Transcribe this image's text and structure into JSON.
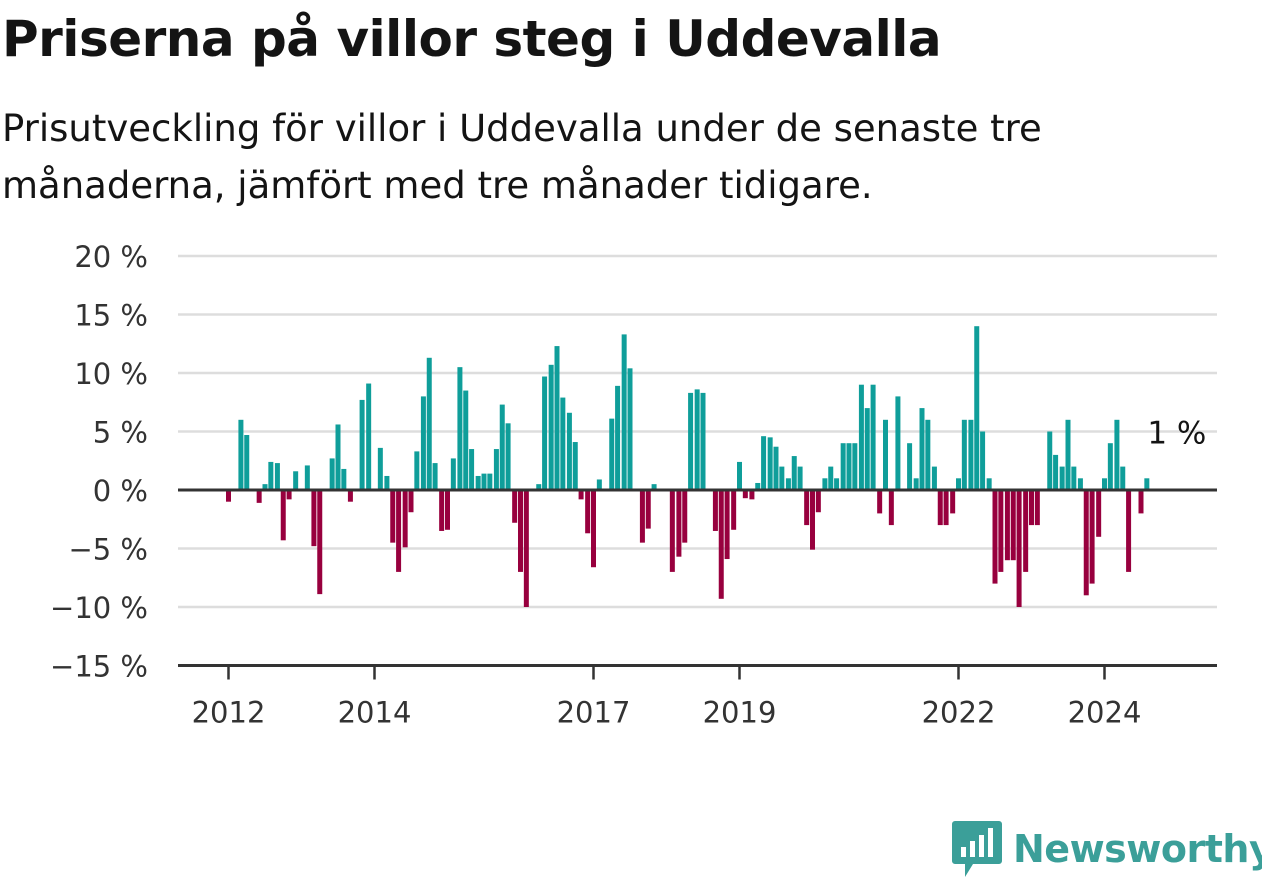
{
  "title": "Priserna på villor steg i Uddevalla",
  "subtitle": "Prisutveckling för villor i Uddevalla under de senaste tre månaderna, jämfört med tre månader tidigare.",
  "brand": {
    "name": "Newsworthy",
    "color": "#3b9f99",
    "icon": "newsworthy-logo-icon"
  },
  "colors": {
    "positive": "#0f9e9a",
    "negative": "#98003e",
    "grid": "#dddddd",
    "axis": "#333333"
  },
  "chart_data": {
    "type": "bar",
    "ylim": [
      -15,
      20
    ],
    "yticks": [
      20,
      15,
      10,
      5,
      0,
      -5,
      -10,
      -15
    ],
    "ytick_labels": [
      "20 %",
      "15 %",
      "10 %",
      "5 %",
      "0 %",
      "−5 %",
      "−10 %",
      "−15 %"
    ],
    "xticks": [
      {
        "year": 2012,
        "label": "2012"
      },
      {
        "year": 2014,
        "label": "2014"
      },
      {
        "year": 2017,
        "label": "2017"
      },
      {
        "year": 2019,
        "label": "2019"
      },
      {
        "year": 2022,
        "label": "2022"
      },
      {
        "year": 2024,
        "label": "2024"
      }
    ],
    "annotation": "1 %",
    "grid": true,
    "bars": [
      {
        "t": 2012.0,
        "v": -1
      },
      {
        "t": 2012.17,
        "v": 6
      },
      {
        "t": 2012.25,
        "v": 4.7
      },
      {
        "t": 2012.42,
        "v": -1.1
      },
      {
        "t": 2012.5,
        "v": 0.5
      },
      {
        "t": 2012.58,
        "v": 2.4
      },
      {
        "t": 2012.67,
        "v": 2.3
      },
      {
        "t": 2012.75,
        "v": -4.3
      },
      {
        "t": 2012.83,
        "v": -0.8
      },
      {
        "t": 2012.92,
        "v": 1.6
      },
      {
        "t": 2013.08,
        "v": 2.1
      },
      {
        "t": 2013.17,
        "v": -4.8
      },
      {
        "t": 2013.25,
        "v": -8.9
      },
      {
        "t": 2013.42,
        "v": 2.7
      },
      {
        "t": 2013.5,
        "v": 5.6
      },
      {
        "t": 2013.58,
        "v": 1.8
      },
      {
        "t": 2013.67,
        "v": -1
      },
      {
        "t": 2013.83,
        "v": 7.7
      },
      {
        "t": 2013.92,
        "v": 9.1
      },
      {
        "t": 2014.08,
        "v": 3.6
      },
      {
        "t": 2014.17,
        "v": 1.2
      },
      {
        "t": 2014.25,
        "v": -4.5
      },
      {
        "t": 2014.33,
        "v": -7
      },
      {
        "t": 2014.42,
        "v": -4.9
      },
      {
        "t": 2014.5,
        "v": -1.9
      },
      {
        "t": 2014.58,
        "v": 3.3
      },
      {
        "t": 2014.67,
        "v": 8
      },
      {
        "t": 2014.75,
        "v": 11.3
      },
      {
        "t": 2014.83,
        "v": 2.3
      },
      {
        "t": 2014.92,
        "v": -3.5
      },
      {
        "t": 2015.0,
        "v": -3.4
      },
      {
        "t": 2015.08,
        "v": 2.7
      },
      {
        "t": 2015.17,
        "v": 10.5
      },
      {
        "t": 2015.25,
        "v": 8.5
      },
      {
        "t": 2015.33,
        "v": 3.5
      },
      {
        "t": 2015.42,
        "v": 1.2
      },
      {
        "t": 2015.5,
        "v": 1.4
      },
      {
        "t": 2015.58,
        "v": 1.4
      },
      {
        "t": 2015.67,
        "v": 3.5
      },
      {
        "t": 2015.75,
        "v": 7.3
      },
      {
        "t": 2015.83,
        "v": 5.7
      },
      {
        "t": 2015.92,
        "v": -2.8
      },
      {
        "t": 2016.0,
        "v": -7
      },
      {
        "t": 2016.08,
        "v": -10
      },
      {
        "t": 2016.25,
        "v": 0.5
      },
      {
        "t": 2016.33,
        "v": 9.7
      },
      {
        "t": 2016.42,
        "v": 10.7
      },
      {
        "t": 2016.5,
        "v": 12.3
      },
      {
        "t": 2016.58,
        "v": 7.9
      },
      {
        "t": 2016.67,
        "v": 6.6
      },
      {
        "t": 2016.75,
        "v": 4.1
      },
      {
        "t": 2016.83,
        "v": -0.8
      },
      {
        "t": 2016.92,
        "v": -3.7
      },
      {
        "t": 2017.0,
        "v": -6.6
      },
      {
        "t": 2017.08,
        "v": 0.9
      },
      {
        "t": 2017.25,
        "v": 6.1
      },
      {
        "t": 2017.33,
        "v": 8.9
      },
      {
        "t": 2017.42,
        "v": 13.3
      },
      {
        "t": 2017.5,
        "v": 10.4
      },
      {
        "t": 2017.67,
        "v": -4.5
      },
      {
        "t": 2017.75,
        "v": -3.3
      },
      {
        "t": 2017.83,
        "v": 0.5
      },
      {
        "t": 2018.08,
        "v": -7
      },
      {
        "t": 2018.17,
        "v": -5.7
      },
      {
        "t": 2018.25,
        "v": -4.5
      },
      {
        "t": 2018.33,
        "v": 8.3
      },
      {
        "t": 2018.42,
        "v": 8.6
      },
      {
        "t": 2018.5,
        "v": 8.3
      },
      {
        "t": 2018.67,
        "v": -3.5
      },
      {
        "t": 2018.75,
        "v": -9.3
      },
      {
        "t": 2018.83,
        "v": -5.9
      },
      {
        "t": 2018.92,
        "v": -3.4
      },
      {
        "t": 2019.0,
        "v": 2.4
      },
      {
        "t": 2019.08,
        "v": -0.7
      },
      {
        "t": 2019.17,
        "v": -0.8
      },
      {
        "t": 2019.25,
        "v": 0.6
      },
      {
        "t": 2019.33,
        "v": 4.6
      },
      {
        "t": 2019.42,
        "v": 4.5
      },
      {
        "t": 2019.5,
        "v": 3.7
      },
      {
        "t": 2019.58,
        "v": 2
      },
      {
        "t": 2019.67,
        "v": 1
      },
      {
        "t": 2019.75,
        "v": 2.9
      },
      {
        "t": 2019.83,
        "v": 2
      },
      {
        "t": 2019.92,
        "v": -3
      },
      {
        "t": 2020.0,
        "v": -5.1
      },
      {
        "t": 2020.08,
        "v": -1.9
      },
      {
        "t": 2020.17,
        "v": 1
      },
      {
        "t": 2020.25,
        "v": 2
      },
      {
        "t": 2020.33,
        "v": 1
      },
      {
        "t": 2020.42,
        "v": 4
      },
      {
        "t": 2020.5,
        "v": 4
      },
      {
        "t": 2020.58,
        "v": 4
      },
      {
        "t": 2020.67,
        "v": 9
      },
      {
        "t": 2020.75,
        "v": 7
      },
      {
        "t": 2020.83,
        "v": 9
      },
      {
        "t": 2020.92,
        "v": -2
      },
      {
        "t": 2021.0,
        "v": 6
      },
      {
        "t": 2021.08,
        "v": -3
      },
      {
        "t": 2021.17,
        "v": 8
      },
      {
        "t": 2021.33,
        "v": 4
      },
      {
        "t": 2021.42,
        "v": 1
      },
      {
        "t": 2021.5,
        "v": 7
      },
      {
        "t": 2021.58,
        "v": 6
      },
      {
        "t": 2021.67,
        "v": 2
      },
      {
        "t": 2021.75,
        "v": -3
      },
      {
        "t": 2021.83,
        "v": -3
      },
      {
        "t": 2021.92,
        "v": -2
      },
      {
        "t": 2022.0,
        "v": 1
      },
      {
        "t": 2022.08,
        "v": 6
      },
      {
        "t": 2022.17,
        "v": 6
      },
      {
        "t": 2022.25,
        "v": 14
      },
      {
        "t": 2022.33,
        "v": 5
      },
      {
        "t": 2022.42,
        "v": 1
      },
      {
        "t": 2022.5,
        "v": -8
      },
      {
        "t": 2022.58,
        "v": -7
      },
      {
        "t": 2022.67,
        "v": -6
      },
      {
        "t": 2022.75,
        "v": -6
      },
      {
        "t": 2022.83,
        "v": -10
      },
      {
        "t": 2022.92,
        "v": -7
      },
      {
        "t": 2023.0,
        "v": -3
      },
      {
        "t": 2023.08,
        "v": -3
      },
      {
        "t": 2023.25,
        "v": 5
      },
      {
        "t": 2023.33,
        "v": 3
      },
      {
        "t": 2023.42,
        "v": 2
      },
      {
        "t": 2023.5,
        "v": 6
      },
      {
        "t": 2023.58,
        "v": 2
      },
      {
        "t": 2023.67,
        "v": 1
      },
      {
        "t": 2023.75,
        "v": -9
      },
      {
        "t": 2023.83,
        "v": -8
      },
      {
        "t": 2023.92,
        "v": -4
      },
      {
        "t": 2024.0,
        "v": 1
      },
      {
        "t": 2024.08,
        "v": 4
      },
      {
        "t": 2024.17,
        "v": 6
      },
      {
        "t": 2024.25,
        "v": 2
      },
      {
        "t": 2024.33,
        "v": -7
      },
      {
        "t": 2024.5,
        "v": -2
      },
      {
        "t": 2024.58,
        "v": 1
      }
    ]
  }
}
